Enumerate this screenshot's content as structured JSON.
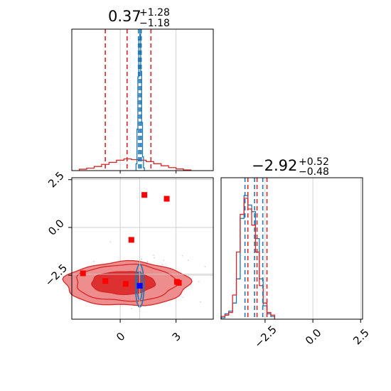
{
  "colors": {
    "red": "#d62728",
    "blue": "#1f77b4",
    "red_marker": "#ff0000",
    "blue_marker": "#0000ff",
    "grid": "#c8c8c8",
    "fill_dark": "#dd3030",
    "fill_light": "#ee8d8d",
    "scatter": "#f08080"
  },
  "chart_data": [
    {
      "type": "histogram",
      "panel": "marginal-top",
      "title": {
        "value": "0.37",
        "plus": "+1.28",
        "minus": "−1.18"
      },
      "xlim": [
        -2.6,
        5.0
      ],
      "ylim": [
        0,
        1
      ],
      "grid": true,
      "series": [
        {
          "color": "#d62728",
          "edges": [
            -2.2,
            -1.8,
            -1.4,
            -1.0,
            -0.6,
            -0.2,
            0.2,
            0.6,
            1.0,
            1.4,
            1.8,
            2.2,
            2.6,
            3.0,
            3.4,
            3.8
          ],
          "heights": [
            0.01,
            0.018,
            0.03,
            0.045,
            0.06,
            0.075,
            0.085,
            0.08,
            0.075,
            0.065,
            0.05,
            0.035,
            0.022,
            0.012,
            0.005
          ],
          "quantile_lines": [
            -0.8,
            0.37,
            1.65
          ]
        },
        {
          "color": "#1f77b4",
          "edges": [
            0.85,
            0.9,
            0.95,
            1.0,
            1.05,
            1.1,
            1.15,
            1.2,
            1.25,
            1.3
          ],
          "heights": [
            0.05,
            0.3,
            0.68,
            0.95,
            0.99,
            0.72,
            0.35,
            0.1,
            0.02
          ],
          "quantile_lines": [
            0.98,
            1.06,
            1.13
          ]
        }
      ]
    },
    {
      "type": "contour-scatter",
      "panel": "joint",
      "xlim": [
        -2.6,
        5.0
      ],
      "ylim": [
        -4.8,
        2.6
      ],
      "xticks": [
        0,
        3
      ],
      "yticks": [
        2.5,
        0.0,
        -2.5
      ],
      "ytick_labels": [
        "2.5",
        "0.0",
        "−2.5"
      ],
      "grid": true,
      "red_points": [
        {
          "x": 1.3,
          "y": 1.7
        },
        {
          "x": 2.5,
          "y": 1.5
        },
        {
          "x": 0.6,
          "y": -0.65
        },
        {
          "x": -2.0,
          "y": -2.4
        },
        {
          "x": -0.8,
          "y": -2.8
        },
        {
          "x": 0.3,
          "y": -2.95
        },
        {
          "x": 3.05,
          "y": -2.85
        },
        {
          "x": 3.15,
          "y": -2.9
        }
      ],
      "blue_points": [
        {
          "x": 1.05,
          "y": -3.05
        }
      ],
      "guide_lines": {
        "x": 1.05,
        "y": -2.45
      }
    },
    {
      "type": "histogram",
      "panel": "marginal-right",
      "title": {
        "value": "−2.92",
        "plus": "+0.52",
        "minus": "−0.48"
      },
      "xlim": [
        -4.8,
        2.6
      ],
      "ylim": [
        0,
        1
      ],
      "xticks": [
        -2.5,
        0.0,
        2.5
      ],
      "xtick_labels": [
        "−2.5",
        "0.0",
        "2.5"
      ],
      "grid": true,
      "series": [
        {
          "color": "#1f77b4",
          "edges": [
            -4.8,
            -4.6,
            -4.4,
            -4.2,
            -4.0,
            -3.8,
            -3.6,
            -3.4,
            -3.2,
            -3.0,
            -2.8,
            -2.6,
            -2.4,
            -2.2,
            -2.0
          ],
          "heights": [
            0.01,
            0.04,
            0.06,
            0.12,
            0.3,
            0.75,
            0.92,
            0.85,
            0.8,
            0.6,
            0.3,
            0.1,
            0.04,
            0.02
          ],
          "quantile_lines": [
            -3.55,
            -3.05,
            -2.62
          ]
        },
        {
          "color": "#d62728",
          "edges": [
            -4.8,
            -4.6,
            -4.4,
            -4.2,
            -4.0,
            -3.8,
            -3.6,
            -3.4,
            -3.2,
            -3.0,
            -2.8,
            -2.6,
            -2.4,
            -2.2,
            -2.0
          ],
          "heights": [
            0.02,
            0.03,
            0.05,
            0.18,
            0.5,
            0.78,
            0.9,
            0.82,
            0.7,
            0.5,
            0.25,
            0.12,
            0.05,
            0.03
          ],
          "quantile_lines": [
            -3.4,
            -2.92,
            -2.4
          ]
        }
      ]
    }
  ]
}
